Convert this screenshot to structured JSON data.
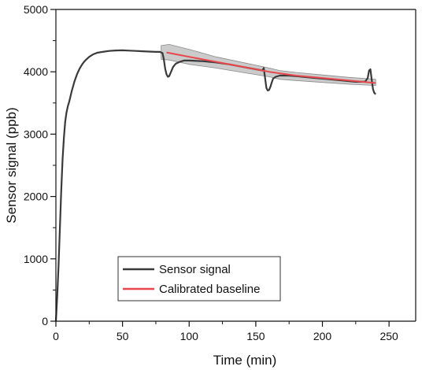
{
  "chart_data": {
    "type": "line",
    "xlabel": "Time (min)",
    "ylabel": "Sensor signal (ppb)",
    "xlim": [
      0,
      270
    ],
    "ylim": [
      0,
      5000
    ],
    "xticks": [
      0,
      50,
      100,
      150,
      200,
      250
    ],
    "yticks": [
      0,
      1000,
      2000,
      3000,
      4000,
      5000
    ],
    "grid": false,
    "legend_placement": "bottom-center",
    "series": [
      {
        "name": "Sensor signal",
        "color": "#3a3a3a",
        "x": [
          0,
          1,
          2,
          3,
          4,
          5,
          6,
          7,
          8,
          9,
          10,
          12,
          14,
          16,
          18,
          20,
          22,
          25,
          28,
          31,
          35,
          40,
          45,
          50,
          55,
          60,
          65,
          70,
          75,
          78,
          80,
          81,
          82,
          83,
          84,
          85,
          86,
          88,
          90,
          93,
          96,
          100,
          110,
          120,
          130,
          140,
          150,
          155,
          156,
          157,
          158,
          159,
          160,
          161,
          162,
          163,
          165,
          168,
          175,
          185,
          195,
          205,
          215,
          225,
          232,
          234,
          235,
          236,
          237,
          238,
          239,
          240
        ],
        "y": [
          0,
          400,
          900,
          1500,
          2100,
          2600,
          2950,
          3200,
          3350,
          3450,
          3520,
          3700,
          3850,
          3970,
          4060,
          4130,
          4180,
          4240,
          4280,
          4305,
          4320,
          4335,
          4342,
          4345,
          4340,
          4335,
          4330,
          4325,
          4320,
          4320,
          4300,
          4200,
          4050,
          3960,
          3920,
          3930,
          3980,
          4080,
          4130,
          4160,
          4180,
          4180,
          4170,
          4150,
          4120,
          4080,
          4040,
          4020,
          4060,
          3900,
          3740,
          3700,
          3710,
          3760,
          3830,
          3890,
          3920,
          3940,
          3940,
          3920,
          3900,
          3880,
          3860,
          3840,
          3840,
          3900,
          4020,
          4040,
          3880,
          3720,
          3660,
          3640
        ]
      },
      {
        "name": "Calibrated baseline",
        "color": "#e8474c",
        "x": [
          83,
          100,
          120,
          140,
          160,
          180,
          200,
          220,
          240
        ],
        "y": [
          4310,
          4240,
          4160,
          4080,
          4000,
          3940,
          3900,
          3860,
          3820
        ]
      }
    ],
    "band": {
      "color": "#a9a9a9",
      "x": [
        79,
        85,
        100,
        120,
        140,
        160,
        168,
        180,
        200,
        220,
        240
      ],
      "upper": [
        4420,
        4440,
        4360,
        4240,
        4150,
        4060,
        4020,
        3990,
        3950,
        3910,
        3880
      ],
      "lower": [
        4200,
        4190,
        4120,
        4060,
        3990,
        3920,
        3880,
        3860,
        3830,
        3800,
        3780
      ]
    },
    "legend": [
      {
        "label": "Sensor signal",
        "color": "#3a3a3a"
      },
      {
        "label": "Calibrated baseline",
        "color": "#e8474c"
      }
    ]
  }
}
